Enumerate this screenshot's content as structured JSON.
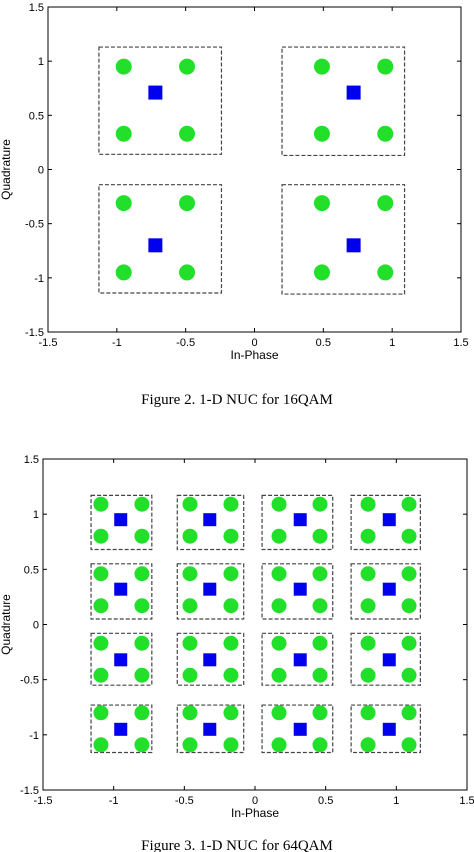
{
  "chart_data": [
    {
      "type": "scatter",
      "caption": "Figure 2. 1-D NUC for 16QAM",
      "xlabel": "In-Phase",
      "ylabel": "Quadrature",
      "xlim": [
        -1.5,
        1.5
      ],
      "ylim": [
        -1.5,
        1.5
      ],
      "xticks": [
        "-1.5",
        "-1",
        "-0.5",
        "0",
        "0.5",
        "1",
        "1.5"
      ],
      "yticks": [
        "-1.5",
        "-1",
        "-0.5",
        "0",
        "0.5",
        "1",
        "1.5"
      ],
      "grid": false,
      "colors": {
        "points": "#22e02a",
        "centers": "#0000ee",
        "boxes": "#444444"
      },
      "series": [
        {
          "marker": "circle",
          "x": [
            -0.95,
            -0.49,
            -0.95,
            -0.49,
            0.49,
            0.95,
            0.49,
            0.95,
            -0.95,
            -0.49,
            -0.95,
            -0.49,
            0.49,
            0.95,
            0.49,
            0.95
          ],
          "y": [
            0.95,
            0.95,
            0.33,
            0.33,
            0.95,
            0.95,
            0.33,
            0.33,
            -0.31,
            -0.31,
            -0.95,
            -0.95,
            -0.31,
            -0.31,
            -0.95,
            -0.95
          ]
        },
        {
          "marker": "square",
          "x": [
            -0.72,
            0.72,
            -0.72,
            0.72
          ],
          "y": [
            0.71,
            0.71,
            -0.7,
            -0.7
          ]
        }
      ],
      "regions": [
        {
          "x0": -1.13,
          "x1": -0.24,
          "y0": 0.14,
          "y1": 1.13
        },
        {
          "x0": 0.2,
          "x1": 1.09,
          "y0": 0.13,
          "y1": 1.13
        },
        {
          "x0": -1.13,
          "x1": -0.24,
          "y0": -1.14,
          "y1": -0.14
        },
        {
          "x0": 0.2,
          "x1": 1.09,
          "y0": -1.15,
          "y1": -0.14
        }
      ]
    },
    {
      "type": "scatter",
      "caption": "Figure 3. 1-D NUC for 64QAM",
      "xlabel": "In-Phase",
      "ylabel": "Quadrature",
      "xlim": [
        -1.5,
        1.5
      ],
      "ylim": [
        -1.5,
        1.5
      ],
      "xticks": [
        "-1.5",
        "-1",
        "-0.5",
        "0",
        "0.5",
        "1",
        "1.5"
      ],
      "yticks": [
        "-1.5",
        "-1",
        "-0.5",
        "0",
        "0.5",
        "1",
        "1.5"
      ],
      "grid": false,
      "colors": {
        "points": "#22e02a",
        "centers": "#0000ee",
        "boxes": "#444444"
      },
      "point_levels": [
        -1.09,
        -0.8,
        -0.46,
        -0.17,
        0.17,
        0.46,
        0.8,
        1.09
      ],
      "center_levels": [
        -0.95,
        -0.32,
        0.32,
        0.95
      ],
      "region_edges": [
        [
          -1.16,
          -0.73
        ],
        [
          -0.55,
          -0.08
        ],
        [
          0.05,
          0.55
        ],
        [
          0.68,
          1.17
        ]
      ]
    }
  ]
}
